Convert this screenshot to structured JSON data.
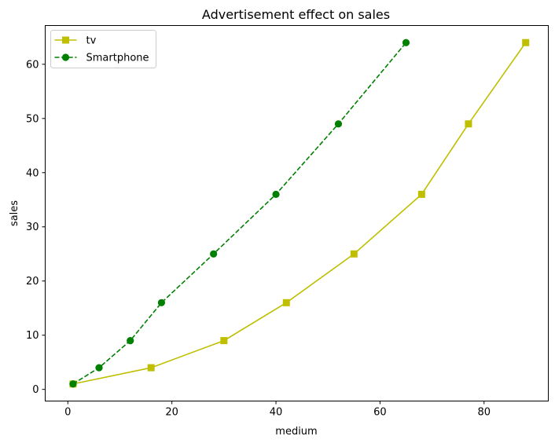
{
  "chart_data": {
    "type": "line",
    "title": "Advertisement effect on sales",
    "xlabel": "medium",
    "ylabel": "sales",
    "xlim": [
      -4.35,
      92.35
    ],
    "ylim": [
      -2.15,
      67.15
    ],
    "xticks": [
      0,
      20,
      40,
      60,
      80
    ],
    "yticks": [
      0,
      10,
      20,
      30,
      40,
      50,
      60
    ],
    "grid": false,
    "legend_position": "upper-left",
    "series": [
      {
        "name": "tv",
        "color": "#bfbf00",
        "linestyle": "solid",
        "marker": "square",
        "x": [
          1,
          16,
          30,
          42,
          55,
          68,
          77,
          88
        ],
        "y": [
          1,
          4,
          9,
          16,
          25,
          36,
          49,
          64
        ]
      },
      {
        "name": "Smartphone",
        "color": "#008000",
        "linestyle": "dashed",
        "marker": "circle",
        "x": [
          1,
          6,
          12,
          18,
          28,
          40,
          52,
          65
        ],
        "y": [
          1,
          4,
          9,
          16,
          25,
          36,
          49,
          64
        ]
      }
    ]
  }
}
